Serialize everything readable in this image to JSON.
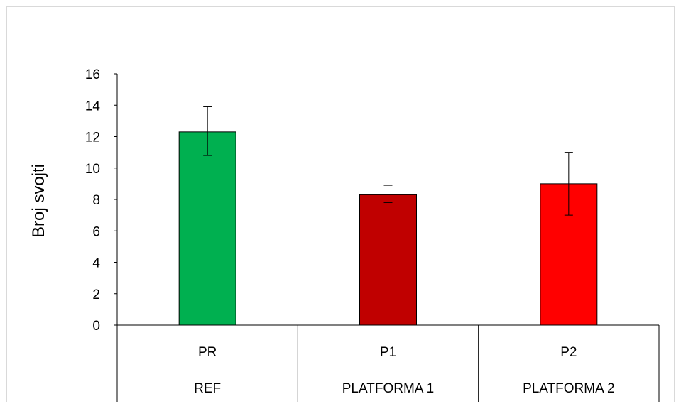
{
  "chart_data": {
    "type": "bar",
    "categories": [
      "PR",
      "P1",
      "P2"
    ],
    "groups": [
      "REF",
      "PLATFORMA 1",
      "PLATFORMA 2"
    ],
    "values": [
      12.3,
      8.3,
      9.0
    ],
    "error_high": [
      13.9,
      8.9,
      11.0
    ],
    "error_low": [
      10.8,
      7.8,
      7.0
    ],
    "bar_colors": [
      "#00b050",
      "#c00000",
      "#ff0000"
    ],
    "ylabel": "Broj svojti",
    "ylim": [
      0,
      16
    ],
    "yticks": [
      0,
      2,
      4,
      6,
      8,
      10,
      12,
      14,
      16
    ],
    "grid": false
  }
}
